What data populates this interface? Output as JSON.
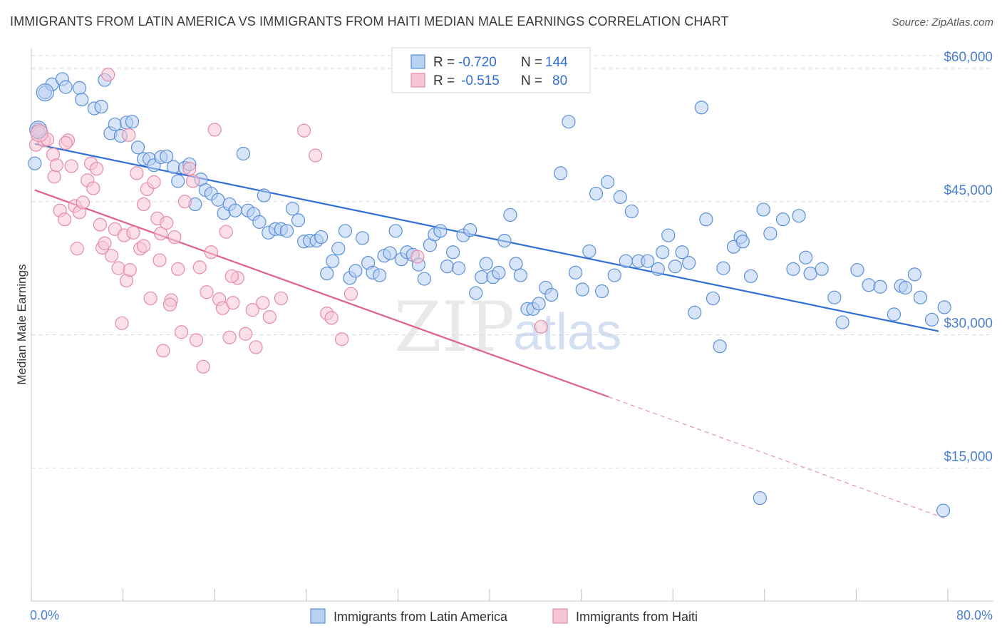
{
  "title": "IMMIGRANTS FROM LATIN AMERICA VS IMMIGRANTS FROM HAITI MEDIAN MALE EARNINGS CORRELATION CHART",
  "source": "Source: ZipAtlas.com",
  "watermark": {
    "zip": "ZIP",
    "atlas": "atlas"
  },
  "colors": {
    "blue": "#5b8fd9",
    "blue_fill": "#b8d0f2",
    "blue_line": "#2f6fd6",
    "pink": "#e58aab",
    "pink_fill": "#f7c6d6",
    "pink_line": "#e0608e",
    "grid": "#d9d9d9",
    "tick_label": "#4a7fd0"
  },
  "legend_box": {
    "rows": [
      {
        "r_label": "R =",
        "r_value": "-0.720",
        "n_label": "N =",
        "n_value": "144"
      },
      {
        "r_label": "R =",
        "r_value": "-0.515",
        "n_label": "N =",
        "n_value": "80"
      }
    ]
  },
  "chart_data": {
    "type": "scatter",
    "xlabel": "",
    "ylabel": "Median Male Earnings",
    "xlim": [
      0,
      80
    ],
    "ylim": [
      0,
      62500
    ],
    "x_tick_labels": {
      "left": "0.0%",
      "right": "80.0%"
    },
    "y_ticks": [
      {
        "value": 15000,
        "label": "$15,000"
      },
      {
        "value": 30000,
        "label": "$30,000"
      },
      {
        "value": 45000,
        "label": "$45,000"
      },
      {
        "value": 60000,
        "label": "$60,000"
      }
    ],
    "grid": "horizontal dashed",
    "legend_position": "bottom",
    "series": [
      {
        "name": "Immigrants from Latin America",
        "color": "#5b8fd9",
        "trend": {
          "x0": 0.3,
          "y0": 51500,
          "x1": 79.2,
          "y1": 30400
        },
        "points": [
          [
            0.3,
            49300
          ],
          [
            0.6,
            53100
          ],
          [
            1.2,
            57300
          ],
          [
            1.8,
            58200
          ],
          [
            2.7,
            58800
          ],
          [
            3.0,
            57900
          ],
          [
            4.2,
            57800
          ],
          [
            4.4,
            56500
          ],
          [
            5.5,
            55500
          ],
          [
            6.1,
            55700
          ],
          [
            6.4,
            58700
          ],
          [
            6.9,
            52700
          ],
          [
            7.3,
            53700
          ],
          [
            7.8,
            52400
          ],
          [
            8.3,
            53900
          ],
          [
            8.8,
            54000
          ],
          [
            9.3,
            51100
          ],
          [
            9.8,
            49800
          ],
          [
            10.3,
            49800
          ],
          [
            10.7,
            49100
          ],
          [
            11.3,
            50000
          ],
          [
            11.8,
            50100
          ],
          [
            12.4,
            48900
          ],
          [
            12.8,
            47300
          ],
          [
            13.4,
            48800
          ],
          [
            13.8,
            49200
          ],
          [
            14.3,
            44700
          ],
          [
            14.8,
            47500
          ],
          [
            15.2,
            46300
          ],
          [
            15.7,
            45900
          ],
          [
            16.3,
            45200
          ],
          [
            16.8,
            43700
          ],
          [
            17.3,
            44700
          ],
          [
            17.8,
            44000
          ],
          [
            18.5,
            50400
          ],
          [
            18.9,
            44000
          ],
          [
            19.4,
            43600
          ],
          [
            19.9,
            42700
          ],
          [
            20.3,
            45700
          ],
          [
            20.7,
            41500
          ],
          [
            21.3,
            41900
          ],
          [
            21.8,
            41900
          ],
          [
            22.3,
            41700
          ],
          [
            22.8,
            44200
          ],
          [
            23.3,
            42900
          ],
          [
            23.8,
            40500
          ],
          [
            24.3,
            40600
          ],
          [
            24.9,
            40600
          ],
          [
            25.3,
            41000
          ],
          [
            25.8,
            36900
          ],
          [
            26.3,
            38300
          ],
          [
            26.8,
            39700
          ],
          [
            27.4,
            41700
          ],
          [
            27.8,
            36400
          ],
          [
            28.3,
            37200
          ],
          [
            28.9,
            40900
          ],
          [
            29.4,
            38100
          ],
          [
            29.8,
            37000
          ],
          [
            30.4,
            36700
          ],
          [
            30.8,
            38900
          ],
          [
            31.3,
            39200
          ],
          [
            31.8,
            41700
          ],
          [
            32.3,
            38500
          ],
          [
            32.8,
            39300
          ],
          [
            33.3,
            39000
          ],
          [
            33.8,
            37900
          ],
          [
            34.3,
            36300
          ],
          [
            34.8,
            40100
          ],
          [
            35.2,
            41300
          ],
          [
            35.7,
            41700
          ],
          [
            36.3,
            37700
          ],
          [
            36.8,
            39300
          ],
          [
            37.3,
            37500
          ],
          [
            37.7,
            41200
          ],
          [
            38.3,
            41800
          ],
          [
            38.8,
            34700
          ],
          [
            39.3,
            36500
          ],
          [
            39.7,
            38000
          ],
          [
            40.3,
            36500
          ],
          [
            40.8,
            37000
          ],
          [
            41.3,
            40600
          ],
          [
            41.8,
            43500
          ],
          [
            42.3,
            38000
          ],
          [
            42.7,
            36700
          ],
          [
            43.3,
            32900
          ],
          [
            43.8,
            32900
          ],
          [
            44.3,
            33500
          ],
          [
            44.9,
            35300
          ],
          [
            45.4,
            34500
          ],
          [
            46.2,
            48200
          ],
          [
            46.9,
            54000
          ],
          [
            47.5,
            37000
          ],
          [
            48.1,
            35100
          ],
          [
            48.7,
            39400
          ],
          [
            49.3,
            45900
          ],
          [
            49.8,
            34900
          ],
          [
            50.3,
            47200
          ],
          [
            50.9,
            36700
          ],
          [
            51.4,
            45500
          ],
          [
            51.9,
            38300
          ],
          [
            52.4,
            43900
          ],
          [
            53.0,
            38300
          ],
          [
            53.8,
            38300
          ],
          [
            54.7,
            37400
          ],
          [
            55.1,
            39300
          ],
          [
            55.6,
            41200
          ],
          [
            56.2,
            37700
          ],
          [
            56.8,
            39300
          ],
          [
            57.4,
            38100
          ],
          [
            57.9,
            32500
          ],
          [
            58.5,
            55600
          ],
          [
            58.9,
            43000
          ],
          [
            59.5,
            34100
          ],
          [
            60.1,
            28700
          ],
          [
            60.4,
            37500
          ],
          [
            61.3,
            39900
          ],
          [
            61.9,
            41000
          ],
          [
            62.1,
            40500
          ],
          [
            62.8,
            36600
          ],
          [
            63.9,
            44100
          ],
          [
            64.5,
            41400
          ],
          [
            65.6,
            43000
          ],
          [
            66.5,
            37400
          ],
          [
            67.0,
            43400
          ],
          [
            67.6,
            38700
          ],
          [
            68.0,
            36900
          ],
          [
            69.0,
            37400
          ],
          [
            70.1,
            34200
          ],
          [
            70.8,
            31400
          ],
          [
            72.1,
            37300
          ],
          [
            73.1,
            35600
          ],
          [
            74.1,
            35400
          ],
          [
            75.3,
            32300
          ],
          [
            75.9,
            35500
          ],
          [
            76.3,
            35300
          ],
          [
            77.1,
            36800
          ],
          [
            77.6,
            34200
          ],
          [
            78.6,
            31700
          ],
          [
            79.7,
            33100
          ],
          [
            63.6,
            11600
          ],
          [
            79.6,
            10200
          ]
        ]
      },
      {
        "name": "Immigrants from Haiti",
        "color": "#e58aab",
        "trend": {
          "x0": 0.3,
          "y0": 46300,
          "x1": 50.4,
          "y1": 23000,
          "dashed_to_x": 80,
          "dashed_to_y": 9200
        },
        "points": [
          [
            0.4,
            51400
          ],
          [
            0.7,
            52700
          ],
          [
            1.1,
            51900
          ],
          [
            1.4,
            52000
          ],
          [
            1.9,
            50300
          ],
          [
            2.0,
            47800
          ],
          [
            2.2,
            49100
          ],
          [
            2.5,
            44000
          ],
          [
            2.9,
            43000
          ],
          [
            3.2,
            51900
          ],
          [
            3.5,
            49000
          ],
          [
            3.8,
            44500
          ],
          [
            4.0,
            39700
          ],
          [
            4.2,
            43800
          ],
          [
            4.5,
            44900
          ],
          [
            4.9,
            47400
          ],
          [
            5.2,
            49300
          ],
          [
            5.4,
            46500
          ],
          [
            5.7,
            48700
          ],
          [
            6.0,
            42400
          ],
          [
            6.2,
            39800
          ],
          [
            6.4,
            40300
          ],
          [
            6.7,
            59300
          ],
          [
            7.0,
            38900
          ],
          [
            7.3,
            41900
          ],
          [
            7.6,
            37500
          ],
          [
            7.9,
            31300
          ],
          [
            8.1,
            41200
          ],
          [
            8.3,
            36100
          ],
          [
            8.6,
            37300
          ],
          [
            8.9,
            41500
          ],
          [
            9.2,
            48200
          ],
          [
            9.5,
            39700
          ],
          [
            9.8,
            44700
          ],
          [
            10.1,
            46400
          ],
          [
            10.4,
            34100
          ],
          [
            10.7,
            47200
          ],
          [
            11.0,
            43100
          ],
          [
            11.3,
            41400
          ],
          [
            11.5,
            28200
          ],
          [
            11.8,
            42600
          ],
          [
            12.2,
            33900
          ],
          [
            12.5,
            41000
          ],
          [
            12.8,
            37400
          ],
          [
            13.1,
            30300
          ],
          [
            13.4,
            45000
          ],
          [
            13.8,
            48700
          ],
          [
            14.1,
            47300
          ],
          [
            14.4,
            29400
          ],
          [
            14.7,
            37600
          ],
          [
            15.0,
            26400
          ],
          [
            15.3,
            34800
          ],
          [
            15.7,
            39300
          ],
          [
            16.0,
            53100
          ],
          [
            16.4,
            34000
          ],
          [
            16.7,
            33000
          ],
          [
            17.0,
            41600
          ],
          [
            17.3,
            29700
          ],
          [
            17.6,
            33600
          ],
          [
            18.0,
            36400
          ],
          [
            18.7,
            30100
          ],
          [
            19.3,
            32800
          ],
          [
            19.6,
            28600
          ],
          [
            20.2,
            33600
          ],
          [
            20.8,
            32000
          ],
          [
            21.8,
            34100
          ],
          [
            23.8,
            53000
          ],
          [
            24.8,
            50200
          ],
          [
            25.8,
            32400
          ],
          [
            26.2,
            31900
          ],
          [
            27.1,
            29500
          ],
          [
            27.9,
            34600
          ],
          [
            33.7,
            38800
          ],
          [
            44.5,
            30900
          ],
          [
            3.0,
            51600
          ],
          [
            8.5,
            52500
          ],
          [
            9.8,
            40000
          ],
          [
            11.2,
            38400
          ],
          [
            17.5,
            36600
          ],
          [
            12.1,
            33400
          ]
        ]
      }
    ]
  }
}
